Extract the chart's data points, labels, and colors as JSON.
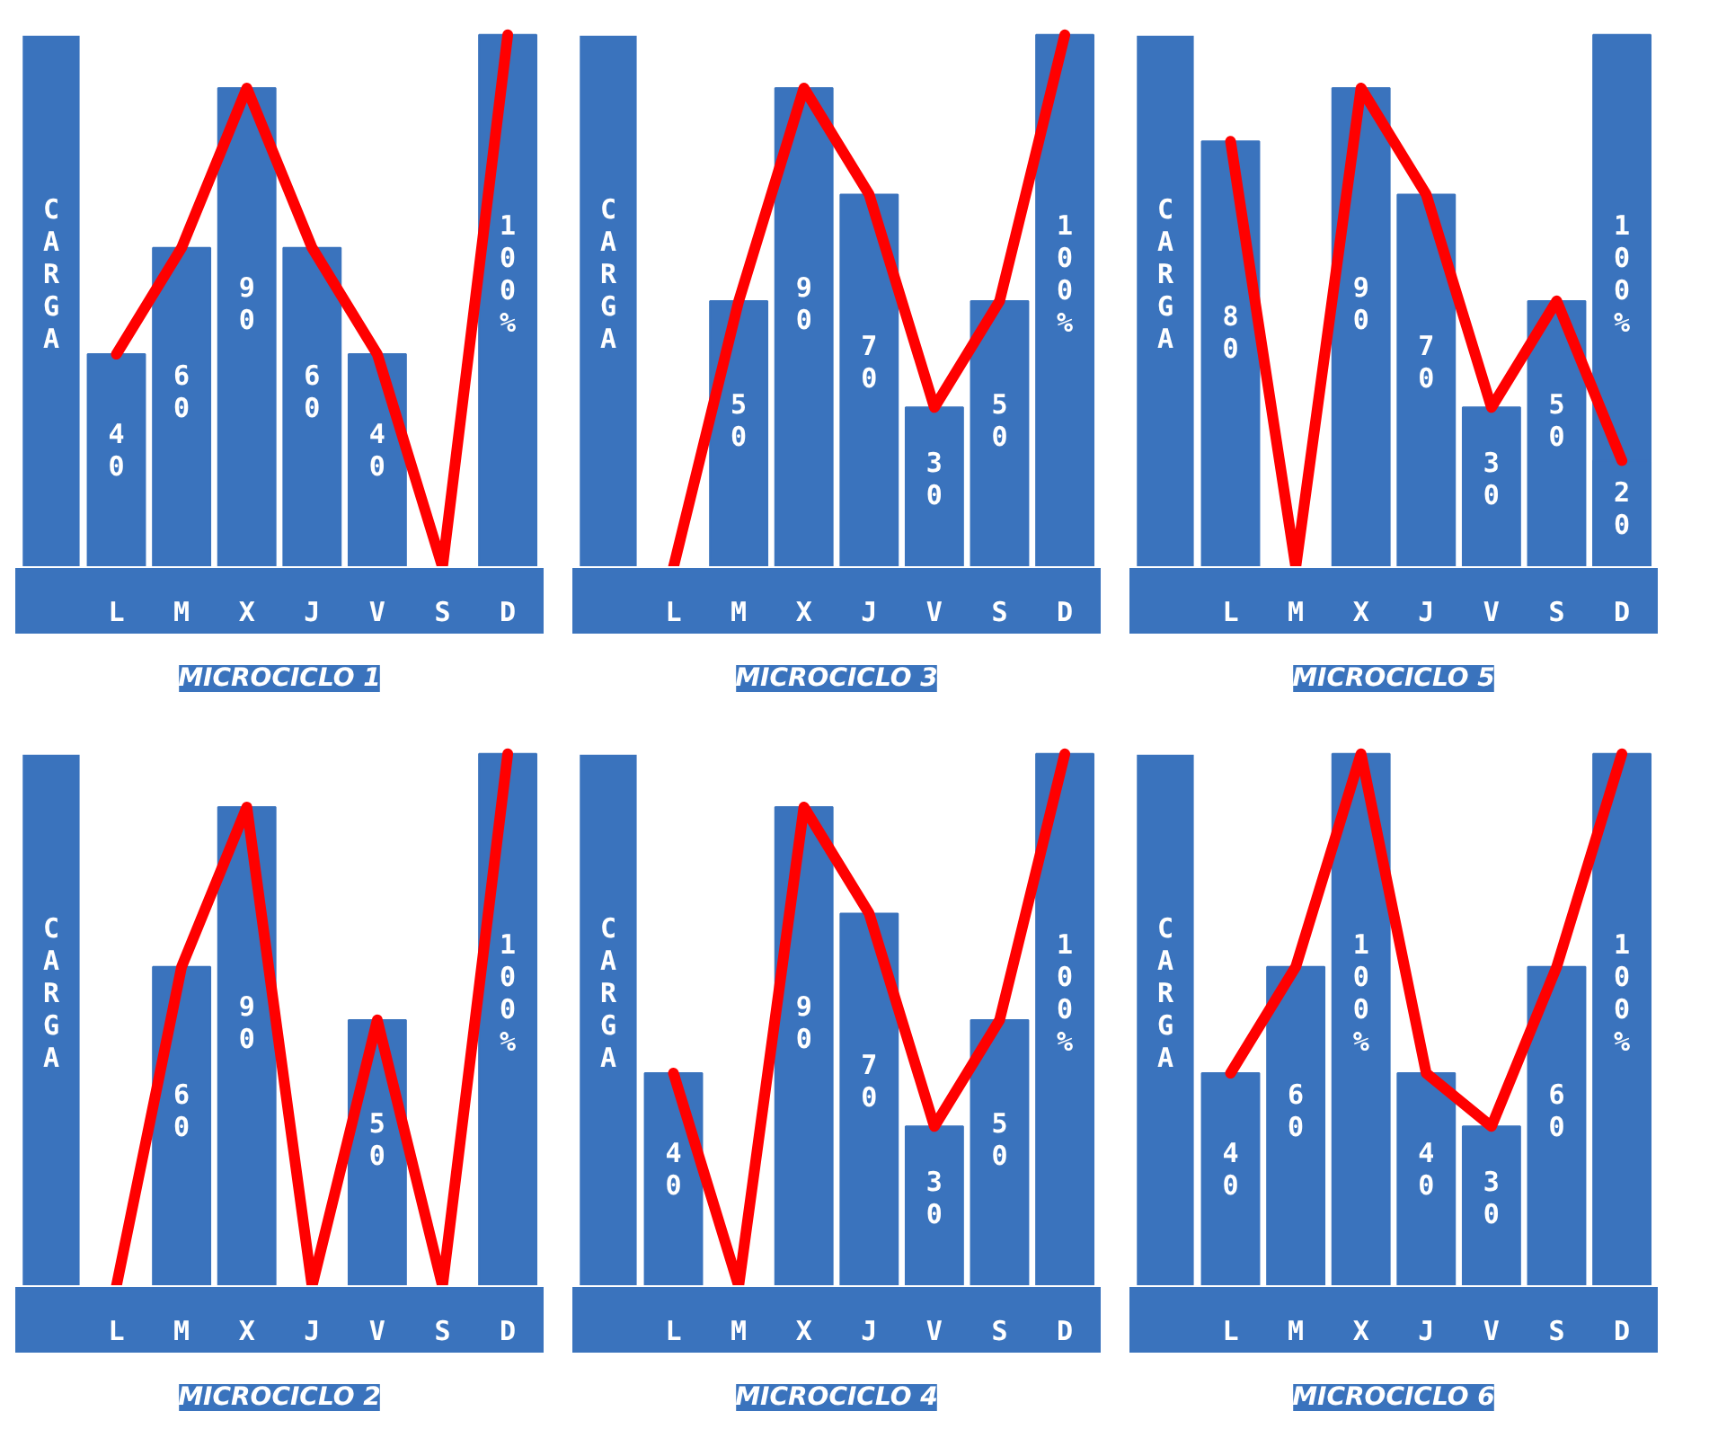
{
  "chart_data": [
    {
      "type": "bar",
      "title": "MICROCICLO 1",
      "ylabel": "CARGA",
      "categories": [
        "L",
        "M",
        "X",
        "J",
        "V",
        "S",
        "D"
      ],
      "grid": false,
      "series": [
        {
          "color": "#3a73bd",
          "values": [
            40,
            60,
            90,
            60,
            40,
            0,
            100
          ],
          "value_labels": [
            "40",
            "60",
            "90",
            "60",
            "40",
            null,
            "100%"
          ]
        },
        {
          "type": "line",
          "color": "#ff0000",
          "values": [
            40,
            60,
            90,
            60,
            40,
            0,
            100
          ]
        }
      ]
    },
    {
      "type": "bar",
      "title": "MICROCICLO 3",
      "ylabel": "CARGA",
      "categories": [
        "L",
        "M",
        "X",
        "J",
        "V",
        "S",
        "D"
      ],
      "grid": false,
      "series": [
        {
          "color": "#3a73bd",
          "values": [
            0,
            50,
            90,
            70,
            30,
            50,
            100
          ],
          "value_labels": [
            null,
            "50",
            "90",
            "70",
            "30",
            "50",
            "100%"
          ]
        },
        {
          "type": "line",
          "color": "#ff0000",
          "values": [
            0,
            50,
            90,
            70,
            30,
            50,
            100
          ]
        }
      ]
    },
    {
      "type": "bar",
      "title": "MICROCICLO 5",
      "ylabel": "CARGA",
      "categories": [
        "L",
        "M",
        "X",
        "J",
        "V",
        "S",
        "D"
      ],
      "grid": false,
      "series": [
        {
          "color": "#3a73bd",
          "values": [
            null,
            null,
            null,
            null,
            null,
            null,
            100
          ],
          "value_labels": [
            null,
            null,
            null,
            null,
            null,
            null,
            "100%"
          ]
        },
        {
          "color": "#3a73bd",
          "values": [
            80,
            0,
            90,
            70,
            30,
            50,
            20
          ],
          "value_labels": [
            "80",
            null,
            "90",
            "70",
            "30",
            "50",
            "20"
          ]
        },
        {
          "type": "line",
          "color": "#ff0000",
          "values": [
            80,
            0,
            90,
            70,
            30,
            50,
            20
          ]
        }
      ]
    },
    {
      "type": "bar",
      "title": "MICROCICLO 2",
      "ylabel": "CARGA",
      "categories": [
        "L",
        "M",
        "X",
        "J",
        "V",
        "S",
        "D"
      ],
      "grid": false,
      "series": [
        {
          "color": "#3a73bd",
          "values": [
            0,
            60,
            90,
            0,
            50,
            0,
            100
          ],
          "value_labels": [
            null,
            "60",
            "90",
            null,
            "50",
            null,
            "100%"
          ]
        },
        {
          "type": "line",
          "color": "#ff0000",
          "values": [
            0,
            60,
            90,
            0,
            50,
            0,
            100
          ]
        }
      ]
    },
    {
      "type": "bar",
      "title": "MICROCICLO 4",
      "ylabel": "CARGA",
      "categories": [
        "L",
        "M",
        "X",
        "J",
        "V",
        "S",
        "D"
      ],
      "grid": false,
      "series": [
        {
          "color": "#3a73bd",
          "values": [
            40,
            0,
            90,
            70,
            30,
            50,
            100
          ],
          "value_labels": [
            "40",
            null,
            "90",
            "70",
            "30",
            "50",
            "100%"
          ]
        },
        {
          "type": "line",
          "color": "#ff0000",
          "values": [
            40,
            0,
            90,
            70,
            30,
            50,
            100
          ]
        }
      ]
    },
    {
      "type": "bar",
      "title": "MICROCICLO 6",
      "ylabel": "CARGA",
      "categories": [
        "L",
        "M",
        "X",
        "J",
        "V",
        "S",
        "D"
      ],
      "grid": false,
      "series": [
        {
          "color": "#3a73bd",
          "values": [
            40,
            60,
            100,
            40,
            30,
            60,
            100
          ],
          "value_labels": [
            "40",
            "60",
            "100%",
            "40",
            "30",
            "60",
            "100%"
          ]
        },
        {
          "type": "line",
          "color": "#ff0000",
          "values": [
            40,
            60,
            100,
            40,
            30,
            60,
            100
          ]
        }
      ]
    }
  ]
}
